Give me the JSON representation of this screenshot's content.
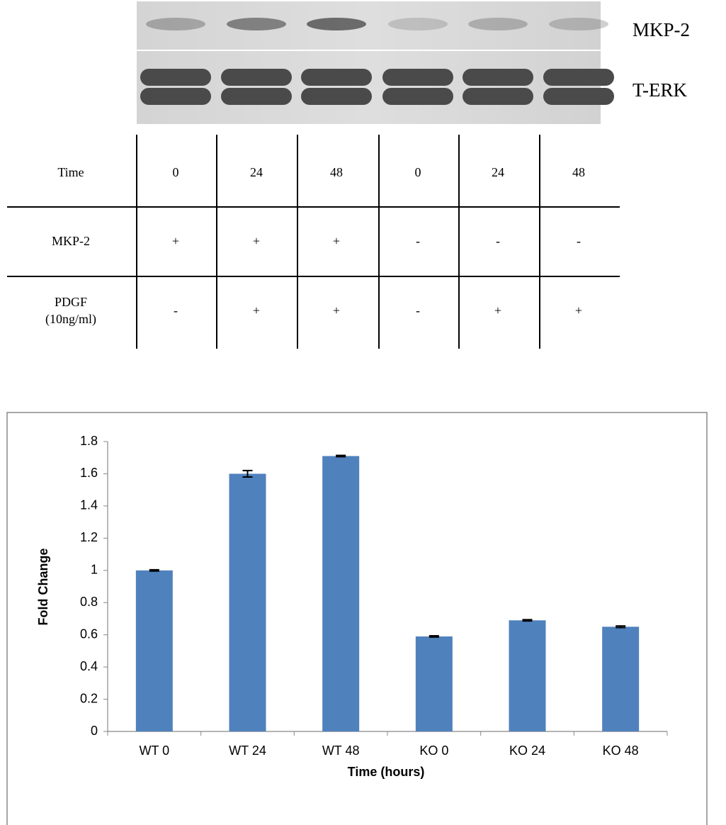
{
  "blot": {
    "labels": [
      "MKP-2",
      "T-ERK"
    ]
  },
  "table": {
    "rows": [
      {
        "label": [
          "Time"
        ],
        "cells": [
          "0",
          "24",
          "48",
          "0",
          "24",
          "48"
        ]
      },
      {
        "label": [
          "MKP-2"
        ],
        "cells": [
          "+",
          "+",
          "+",
          "-",
          "-",
          "-"
        ]
      },
      {
        "label": [
          "PDGF",
          "(10ng/ml)"
        ],
        "cells": [
          "-",
          "+",
          "+",
          "-",
          "+",
          "+"
        ]
      }
    ]
  },
  "chart_data": {
    "type": "bar",
    "categories": [
      "WT 0",
      "WT 24",
      "WT 48",
      "KO 0",
      "KO 24",
      "KO 48"
    ],
    "values": [
      1.0,
      1.6,
      1.71,
      0.59,
      0.69,
      0.65
    ],
    "errors": [
      0.004,
      0.02,
      0.004,
      0.004,
      0.004,
      0.005
    ],
    "color": "#4f81bd",
    "ylim": [
      0,
      1.8
    ],
    "yticks": [
      0,
      0.2,
      0.4,
      0.6,
      0.8,
      1,
      1.2,
      1.4,
      1.6,
      1.8
    ],
    "x_label": "Time (hours)",
    "y_label": "Fold Change"
  }
}
